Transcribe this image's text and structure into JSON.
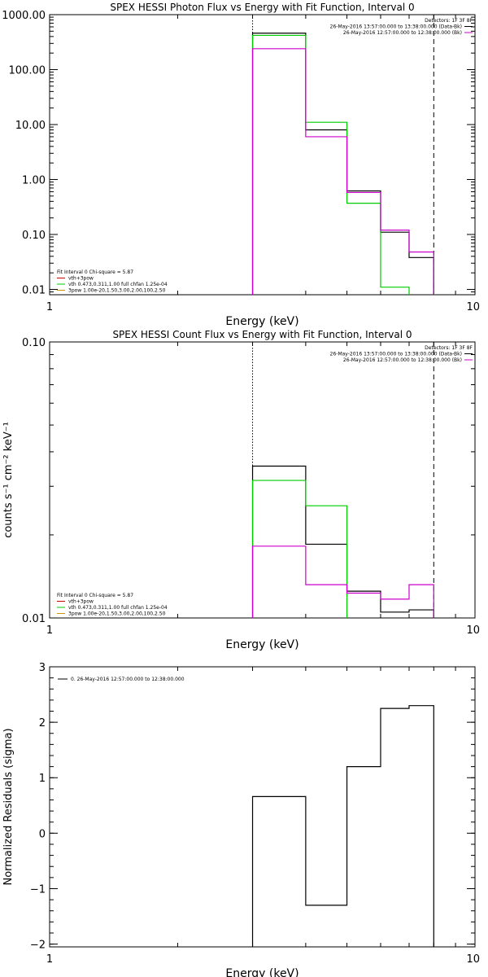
{
  "figure": {
    "colors": {
      "black": "#000000",
      "green": "#00cc00",
      "magenta": "#cc00cc",
      "red": "#cc0000"
    }
  },
  "chart_data": [
    {
      "type": "line",
      "title": "SPEX HESSI Photon Flux vs Energy with Fit Function, Interval 0",
      "xlabel": "Energy (keV)",
      "ylabel": "",
      "xscale": "log",
      "yscale": "log",
      "xlim": [
        1,
        10
      ],
      "ylim": [
        0.008,
        1000
      ],
      "xticks": [
        1,
        10
      ],
      "xtick_labels": [
        "1",
        "10"
      ],
      "yticks": [
        0.01,
        0.1,
        1,
        10,
        100,
        1000
      ],
      "ytick_labels": [
        "0.01",
        "0.10",
        "1.00",
        "10.00",
        "100.00",
        "1000.00"
      ],
      "vlines": [
        {
          "x": 3.0,
          "style": "dotted"
        },
        {
          "x": 8.0,
          "style": "dashed"
        }
      ],
      "legend_tr": [
        {
          "text": "Detectors: 1F 3F 8F",
          "color": ""
        },
        {
          "text": "26-May-2016 13:57:00.000 to 13:38:00.000 (Data-Bk)",
          "color": "#000000"
        },
        {
          "text": "26-May-2016 12:57:00.000 to 12:38:00.000 (Bk)",
          "color": "#cc00cc"
        }
      ],
      "legend_bl": [
        {
          "text": "Fit Interval 0   Chi-square = 5.87",
          "color": ""
        },
        {
          "text": "vth+3pow",
          "color": "#cc0000"
        },
        {
          "text": "vth 0.473,0.311,1.00  full chfan 1.25e-04",
          "color": "#00cc00"
        },
        {
          "text": "3pow 1.00e-20,1.50,3.00,2.00,100,2.50",
          "color": "#cc9900"
        }
      ],
      "series": [
        {
          "color": "#000000",
          "edges": [
            3.0,
            4.0,
            5.0,
            6.0,
            7.0,
            8.0
          ],
          "values": [
            460,
            8.0,
            0.62,
            0.11,
            0.038
          ]
        },
        {
          "color": "#00cc00",
          "edges": [
            3.0,
            4.0,
            5.0,
            6.0,
            7.0
          ],
          "values": [
            420,
            11.0,
            0.37,
            0.011
          ]
        },
        {
          "color": "#cc00cc",
          "edges": [
            3.0,
            4.0,
            5.0,
            6.0,
            7.0,
            8.0
          ],
          "values": [
            240,
            6.0,
            0.58,
            0.12,
            0.048
          ]
        }
      ]
    },
    {
      "type": "line",
      "title": "SPEX HESSI Count Flux vs Energy with Fit Function, Interval 0",
      "xlabel": "Energy (keV)",
      "ylabel": "counts s⁻¹ cm⁻² keV⁻¹",
      "xscale": "log",
      "yscale": "log",
      "xlim": [
        1,
        10
      ],
      "ylim": [
        0.01,
        0.1
      ],
      "xticks": [
        1,
        10
      ],
      "xtick_labels": [
        "1",
        "10"
      ],
      "yticks": [
        0.01,
        0.1
      ],
      "ytick_labels": [
        "0.01",
        "0.10"
      ],
      "vlines": [
        {
          "x": 3.0,
          "style": "dotted"
        },
        {
          "x": 8.0,
          "style": "dashed"
        }
      ],
      "legend_tr": [
        {
          "text": "Detectors: 1F 3F 8F",
          "color": ""
        },
        {
          "text": "26-May-2016 13:57:00.000 to 13:38:00.000 (Data-Bk)",
          "color": "#000000"
        },
        {
          "text": "26-May-2016 12:57:00.000 to 12:38:00.000 (Bk)",
          "color": "#cc00cc"
        }
      ],
      "legend_bl": [
        {
          "text": "Fit Interval 0   Chi-square = 5.87",
          "color": ""
        },
        {
          "text": "vth+3pow",
          "color": "#cc0000"
        },
        {
          "text": "vth 0.473,0.311,1.00  full chfan 1.25e-04",
          "color": "#00cc00"
        },
        {
          "text": "3pow 1.00e-20,1.50,3.00,2.00,100,2.50",
          "color": "#cc9900"
        }
      ],
      "series": [
        {
          "color": "#000000",
          "edges": [
            3.0,
            4.0,
            5.0,
            6.0,
            7.0,
            8.0
          ],
          "values": [
            0.0355,
            0.0185,
            0.0125,
            0.0105,
            0.0107
          ]
        },
        {
          "color": "#00cc00",
          "edges": [
            3.0,
            4.0,
            5.0
          ],
          "values": [
            0.0315,
            0.0255
          ]
        },
        {
          "color": "#cc00cc",
          "edges": [
            3.0,
            4.0,
            5.0,
            6.0,
            7.0,
            8.0
          ],
          "values": [
            0.0182,
            0.0132,
            0.0123,
            0.0117,
            0.0132
          ]
        }
      ]
    },
    {
      "type": "line",
      "title": "",
      "xlabel": "Energy (keV)",
      "ylabel": "Normalized Residuals (sigma)",
      "xscale": "log",
      "yscale": "linear",
      "xlim": [
        1,
        10
      ],
      "ylim": [
        -2.05,
        3
      ],
      "xticks": [
        1,
        10
      ],
      "xtick_labels": [
        "1",
        "10"
      ],
      "yticks": [
        -2,
        -1,
        0,
        1,
        2,
        3
      ],
      "ytick_labels": [
        "−2",
        "−1",
        "0",
        "1",
        "2",
        "3"
      ],
      "vlines": [],
      "legend_tr": [],
      "legend_bl": [],
      "legend_tl": [
        {
          "text": "0. 26-May-2016 12:57:00.000 to 12:38:00.000",
          "color": "#000000"
        }
      ],
      "series": [
        {
          "color": "#000000",
          "edges": [
            3.0,
            4.0,
            5.0,
            6.0,
            7.0,
            8.0
          ],
          "values": [
            0.66,
            -1.3,
            1.2,
            2.25,
            2.3
          ]
        }
      ]
    }
  ]
}
